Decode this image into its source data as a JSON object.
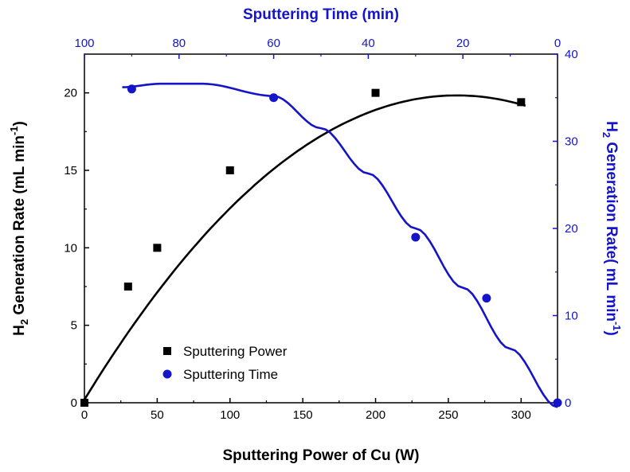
{
  "chart_data": {
    "type": "scatter",
    "title": "",
    "x_bottom": {
      "label": "Sputtering Power of Cu (W)",
      "range": [
        0,
        325
      ],
      "ticks": [
        0,
        50,
        100,
        150,
        200,
        250,
        300
      ],
      "color": "#000000"
    },
    "x_top": {
      "label": "Sputtering Time (min)",
      "range": [
        100,
        0
      ],
      "ticks": [
        100,
        80,
        60,
        40,
        20,
        0
      ],
      "color": "#1414c8"
    },
    "y_left": {
      "label_main": "H",
      "label_sub": "2",
      "label_rest": " Generation Rate (mL min",
      "label_sup": "-1",
      "label_end": ")",
      "range": [
        0,
        22.5
      ],
      "ticks": [
        0,
        5,
        10,
        15,
        20
      ],
      "color": "#000000"
    },
    "y_right": {
      "label_main": "H",
      "label_sub": "2",
      "label_rest": " Generation Rate( mL min",
      "label_sup": "-1",
      "label_end": ")",
      "range": [
        0,
        40
      ],
      "ticks": [
        0,
        10,
        20,
        30,
        40
      ],
      "color": "#1414c8"
    },
    "series": [
      {
        "name": "Sputtering Power",
        "marker": "square",
        "color": "#000000",
        "axes": "bottom-left",
        "points": [
          [
            0,
            0
          ],
          [
            30,
            7.5
          ],
          [
            50,
            10
          ],
          [
            100,
            15
          ],
          [
            200,
            20
          ],
          [
            300,
            19.4
          ]
        ]
      },
      {
        "name": "Sputtering Time",
        "marker": "circle",
        "color": "#1414c8",
        "axes": "top-right",
        "points": [
          [
            90,
            36
          ],
          [
            60,
            35
          ],
          [
            30,
            19
          ],
          [
            15,
            12
          ],
          [
            0,
            0
          ]
        ]
      }
    ],
    "grid": false,
    "legend_position": "bottom-left"
  }
}
